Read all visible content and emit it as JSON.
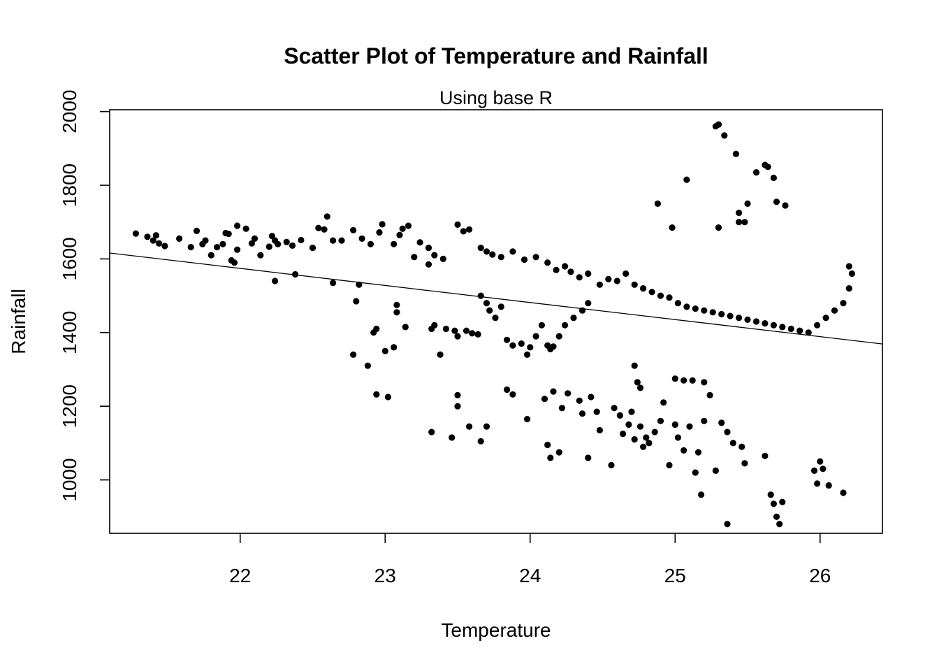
{
  "chart_data": {
    "type": "scatter",
    "title": "Scatter Plot of Temperature and Rainfall",
    "subtitle": "Using base R",
    "xlabel": "Temperature",
    "ylabel": "Rainfall",
    "xlim": [
      21.1,
      26.43
    ],
    "ylim": [
      855,
      2005
    ],
    "xticks": [
      22,
      23,
      24,
      25,
      26
    ],
    "yticks": [
      1000,
      1200,
      1400,
      1600,
      1800,
      2000
    ],
    "grid": false,
    "point_color": "#000000",
    "trend_line": {
      "x": [
        21.1,
        26.43
      ],
      "y": [
        1616,
        1369
      ]
    },
    "points": [
      [
        21.28,
        1669
      ],
      [
        21.36,
        1660
      ],
      [
        21.4,
        1650
      ],
      [
        21.42,
        1664
      ],
      [
        21.44,
        1642
      ],
      [
        21.48,
        1635
      ],
      [
        21.58,
        1655
      ],
      [
        21.66,
        1632
      ],
      [
        21.7,
        1676
      ],
      [
        21.74,
        1640
      ],
      [
        21.76,
        1650
      ],
      [
        21.8,
        1610
      ],
      [
        21.84,
        1632
      ],
      [
        21.88,
        1640
      ],
      [
        21.9,
        1670
      ],
      [
        21.92,
        1668
      ],
      [
        21.94,
        1596
      ],
      [
        21.96,
        1590
      ],
      [
        21.98,
        1625
      ],
      [
        21.98,
        1690
      ],
      [
        22.04,
        1682
      ],
      [
        22.08,
        1642
      ],
      [
        22.1,
        1655
      ],
      [
        22.14,
        1610
      ],
      [
        22.2,
        1633
      ],
      [
        22.22,
        1662
      ],
      [
        22.24,
        1650
      ],
      [
        22.26,
        1640
      ],
      [
        22.32,
        1646
      ],
      [
        22.36,
        1636
      ],
      [
        22.42,
        1651
      ],
      [
        22.5,
        1630
      ],
      [
        22.54,
        1684
      ],
      [
        22.58,
        1680
      ],
      [
        22.6,
        1715
      ],
      [
        22.64,
        1650
      ],
      [
        22.7,
        1650
      ],
      [
        22.78,
        1678
      ],
      [
        22.84,
        1655
      ],
      [
        22.9,
        1640
      ],
      [
        22.96,
        1672
      ],
      [
        22.98,
        1694
      ],
      [
        23.06,
        1640
      ],
      [
        23.1,
        1665
      ],
      [
        23.12,
        1682
      ],
      [
        23.16,
        1690
      ],
      [
        23.2,
        1605
      ],
      [
        23.24,
        1645
      ],
      [
        23.3,
        1585
      ],
      [
        23.3,
        1630
      ],
      [
        23.34,
        1610
      ],
      [
        23.4,
        1600
      ],
      [
        23.5,
        1693
      ],
      [
        23.54,
        1675
      ],
      [
        23.58,
        1680
      ],
      [
        23.66,
        1630
      ],
      [
        23.7,
        1620
      ],
      [
        23.74,
        1612
      ],
      [
        23.8,
        1605
      ],
      [
        23.88,
        1620
      ],
      [
        23.96,
        1598
      ],
      [
        24.04,
        1605
      ],
      [
        24.12,
        1590
      ],
      [
        24.18,
        1570
      ],
      [
        24.24,
        1580
      ],
      [
        24.28,
        1565
      ],
      [
        24.34,
        1550
      ],
      [
        24.4,
        1560
      ],
      [
        24.48,
        1530
      ],
      [
        24.54,
        1545
      ],
      [
        24.6,
        1540
      ],
      [
        24.66,
        1560
      ],
      [
        24.72,
        1530
      ],
      [
        24.78,
        1520
      ],
      [
        24.84,
        1510
      ],
      [
        24.9,
        1500
      ],
      [
        24.96,
        1495
      ],
      [
        25.02,
        1480
      ],
      [
        25.08,
        1470
      ],
      [
        25.14,
        1465
      ],
      [
        25.2,
        1460
      ],
      [
        25.26,
        1455
      ],
      [
        25.32,
        1450
      ],
      [
        25.38,
        1445
      ],
      [
        25.44,
        1440
      ],
      [
        25.5,
        1435
      ],
      [
        25.56,
        1430
      ],
      [
        25.62,
        1425
      ],
      [
        25.68,
        1420
      ],
      [
        25.74,
        1415
      ],
      [
        25.8,
        1410
      ],
      [
        25.86,
        1405
      ],
      [
        25.92,
        1400
      ],
      [
        25.98,
        1420
      ],
      [
        26.04,
        1440
      ],
      [
        26.1,
        1460
      ],
      [
        26.16,
        1480
      ],
      [
        26.2,
        1520
      ],
      [
        26.22,
        1560
      ],
      [
        26.2,
        1580
      ],
      [
        22.38,
        1558
      ],
      [
        22.24,
        1540
      ],
      [
        22.64,
        1535
      ],
      [
        22.82,
        1530
      ],
      [
        22.8,
        1485
      ],
      [
        22.78,
        1340
      ],
      [
        22.88,
        1310
      ],
      [
        22.92,
        1400
      ],
      [
        22.94,
        1410
      ],
      [
        23.0,
        1350
      ],
      [
        23.06,
        1360
      ],
      [
        23.08,
        1475
      ],
      [
        23.08,
        1455
      ],
      [
        23.14,
        1415
      ],
      [
        23.32,
        1410
      ],
      [
        23.34,
        1420
      ],
      [
        23.38,
        1340
      ],
      [
        23.42,
        1410
      ],
      [
        23.48,
        1405
      ],
      [
        23.5,
        1390
      ],
      [
        23.56,
        1405
      ],
      [
        23.6,
        1398
      ],
      [
        23.64,
        1395
      ],
      [
        23.66,
        1500
      ],
      [
        23.7,
        1480
      ],
      [
        23.72,
        1460
      ],
      [
        23.76,
        1440
      ],
      [
        23.8,
        1470
      ],
      [
        23.84,
        1380
      ],
      [
        23.88,
        1365
      ],
      [
        23.94,
        1370
      ],
      [
        23.98,
        1340
      ],
      [
        24.0,
        1360
      ],
      [
        24.04,
        1390
      ],
      [
        24.08,
        1420
      ],
      [
        24.12,
        1365
      ],
      [
        24.14,
        1355
      ],
      [
        24.16,
        1362
      ],
      [
        24.2,
        1390
      ],
      [
        24.24,
        1420
      ],
      [
        24.3,
        1440
      ],
      [
        24.36,
        1460
      ],
      [
        24.4,
        1480
      ],
      [
        22.94,
        1232
      ],
      [
        23.02,
        1225
      ],
      [
        23.32,
        1130
      ],
      [
        23.46,
        1115
      ],
      [
        23.5,
        1230
      ],
      [
        23.5,
        1200
      ],
      [
        23.58,
        1145
      ],
      [
        23.66,
        1105
      ],
      [
        23.7,
        1145
      ],
      [
        23.84,
        1245
      ],
      [
        23.88,
        1232
      ],
      [
        23.98,
        1165
      ],
      [
        24.1,
        1220
      ],
      [
        24.12,
        1095
      ],
      [
        24.14,
        1060
      ],
      [
        24.16,
        1240
      ],
      [
        24.2,
        1075
      ],
      [
        24.22,
        1195
      ],
      [
        24.26,
        1235
      ],
      [
        24.34,
        1215
      ],
      [
        24.36,
        1180
      ],
      [
        24.4,
        1060
      ],
      [
        24.42,
        1225
      ],
      [
        24.46,
        1185
      ],
      [
        24.48,
        1135
      ],
      [
        24.56,
        1040
      ],
      [
        24.58,
        1195
      ],
      [
        24.62,
        1175
      ],
      [
        24.64,
        1125
      ],
      [
        24.68,
        1150
      ],
      [
        24.7,
        1185
      ],
      [
        24.72,
        1110
      ],
      [
        24.76,
        1145
      ],
      [
        24.78,
        1090
      ],
      [
        24.8,
        1115
      ],
      [
        24.82,
        1100
      ],
      [
        24.86,
        1130
      ],
      [
        24.9,
        1160
      ],
      [
        24.92,
        1210
      ],
      [
        24.96,
        1040
      ],
      [
        25.0,
        1150
      ],
      [
        25.02,
        1115
      ],
      [
        25.06,
        1080
      ],
      [
        25.1,
        1145
      ],
      [
        25.14,
        1020
      ],
      [
        25.16,
        1075
      ],
      [
        25.2,
        1160
      ],
      [
        25.24,
        1230
      ],
      [
        25.28,
        1025
      ],
      [
        25.32,
        1155
      ],
      [
        25.36,
        1130
      ],
      [
        25.4,
        1100
      ],
      [
        25.46,
        1090
      ],
      [
        25.48,
        1045
      ],
      [
        25.62,
        1065
      ],
      [
        25.66,
        960
      ],
      [
        25.68,
        935
      ],
      [
        25.7,
        900
      ],
      [
        25.72,
        880
      ],
      [
        25.74,
        940
      ],
      [
        25.36,
        880
      ],
      [
        25.18,
        960
      ],
      [
        25.96,
        1025
      ],
      [
        26.0,
        1050
      ],
      [
        26.02,
        1030
      ],
      [
        25.98,
        990
      ],
      [
        26.06,
        985
      ],
      [
        26.16,
        965
      ],
      [
        25.0,
        1275
      ],
      [
        25.06,
        1270
      ],
      [
        25.12,
        1270
      ],
      [
        25.2,
        1265
      ],
      [
        24.74,
        1265
      ],
      [
        24.76,
        1250
      ],
      [
        24.72,
        1310
      ],
      [
        25.28,
        1960
      ],
      [
        25.3,
        1965
      ],
      [
        25.34,
        1935
      ],
      [
        25.42,
        1885
      ],
      [
        25.62,
        1855
      ],
      [
        25.64,
        1850
      ],
      [
        25.56,
        1835
      ],
      [
        25.68,
        1820
      ],
      [
        25.08,
        1815
      ],
      [
        25.5,
        1750
      ],
      [
        25.7,
        1755
      ],
      [
        25.76,
        1745
      ],
      [
        24.88,
        1750
      ],
      [
        25.44,
        1725
      ],
      [
        25.44,
        1700
      ],
      [
        25.48,
        1700
      ],
      [
        25.3,
        1685
      ],
      [
        24.98,
        1685
      ]
    ]
  }
}
